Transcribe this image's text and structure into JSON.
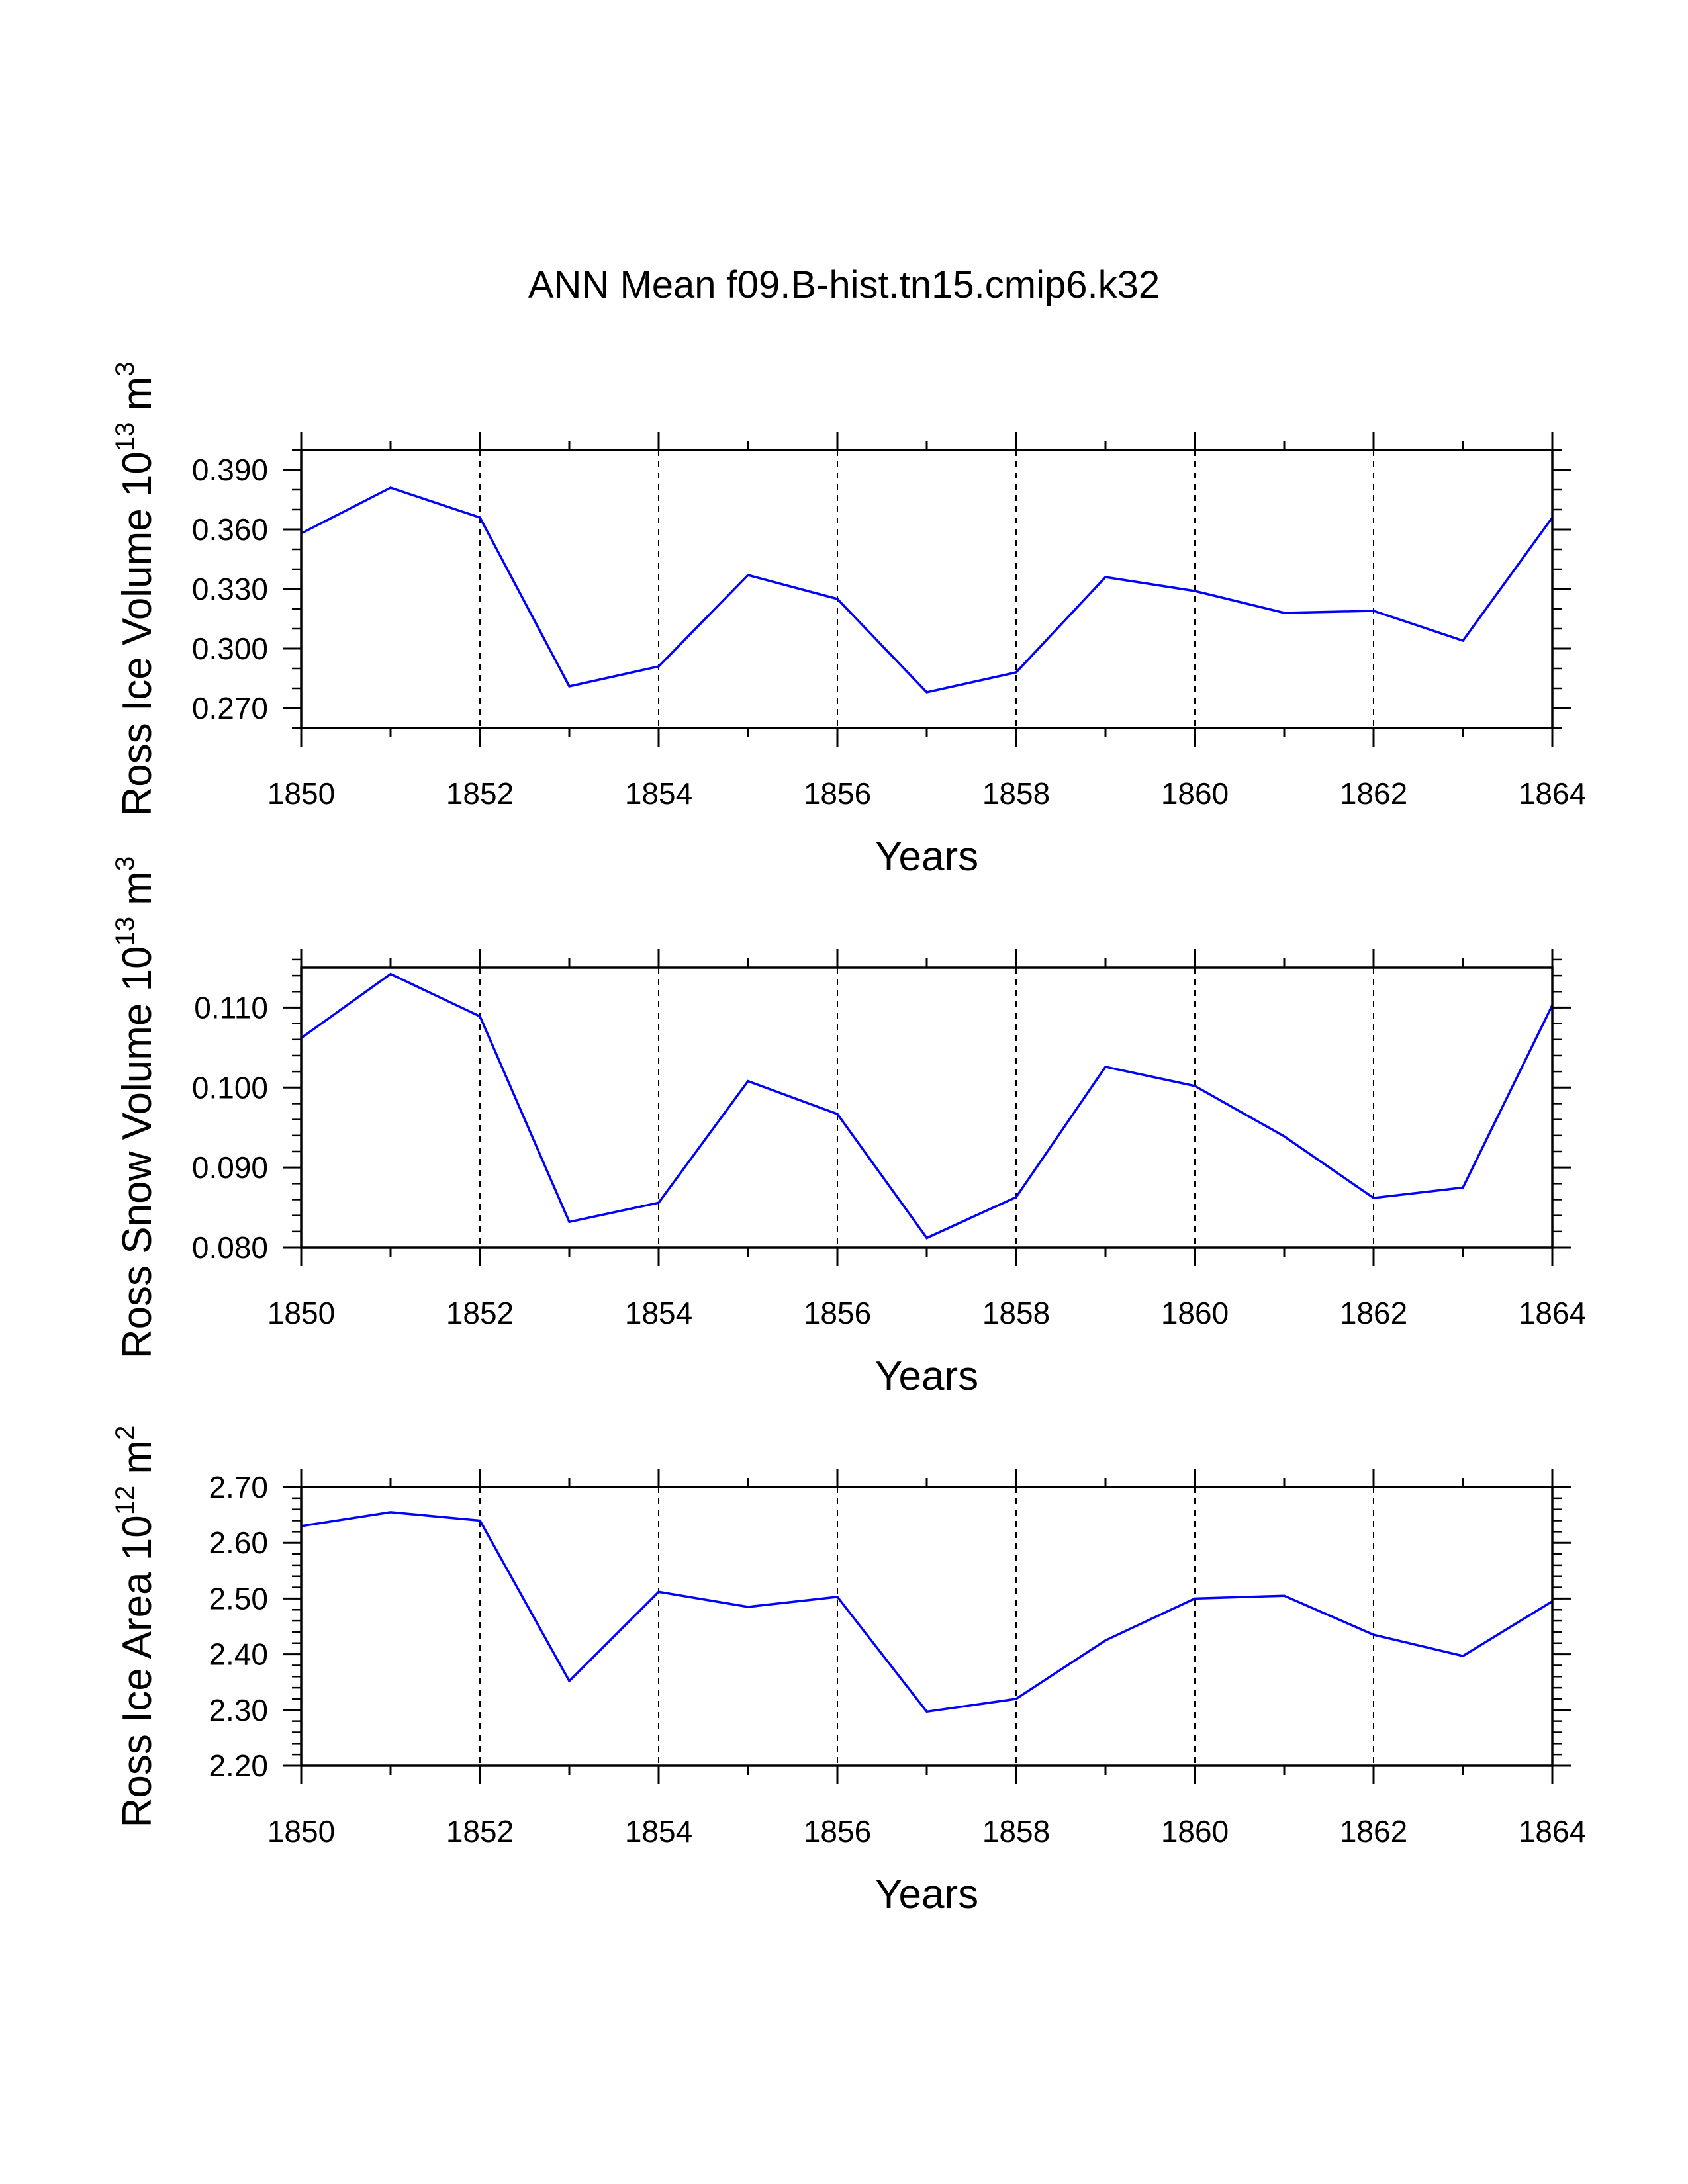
{
  "title": "ANN Mean f09.B-hist.tn15.cmip6.k32",
  "colors": {
    "line": "#0000ff",
    "axis": "#000000",
    "grid": "#000000"
  },
  "chart_data": [
    {
      "type": "line",
      "title": "ANN Mean f09.B-hist.tn15.cmip6.k32",
      "xlabel": "Years",
      "ylabel": {
        "text": "Ross Ice Volume 10",
        "exp": "13",
        "unit": " m",
        "unit_exp": "3"
      },
      "xlim": [
        1850,
        1864
      ],
      "ylim": [
        0.26,
        0.4
      ],
      "xticks": [
        "1850",
        "1852",
        "1854",
        "1856",
        "1858",
        "1860",
        "1862",
        "1864"
      ],
      "yticks": [
        0.27,
        0.3,
        0.33,
        0.36,
        0.39
      ],
      "ytick_labels": [
        "0.270",
        "0.300",
        "0.330",
        "0.360",
        "0.390"
      ],
      "yminor": 0.01,
      "grid": "dashed vertical at major x ticks",
      "series": [
        {
          "name": "Ross Ice Volume",
          "x": [
            1850,
            1851,
            1852,
            1853,
            1854,
            1855,
            1856,
            1857,
            1858,
            1859,
            1860,
            1861,
            1862,
            1863,
            1864
          ],
          "values": [
            0.358,
            0.381,
            0.366,
            0.281,
            0.291,
            0.337,
            0.325,
            0.278,
            0.288,
            0.336,
            0.329,
            0.318,
            0.319,
            0.304,
            0.366
          ]
        }
      ]
    },
    {
      "type": "line",
      "xlabel": "Years",
      "ylabel": {
        "text": "Ross Snow Volume 10",
        "exp": "13",
        "unit": " m",
        "unit_exp": "3"
      },
      "xlim": [
        1850,
        1864
      ],
      "ylim": [
        0.08,
        0.115
      ],
      "xticks": [
        "1850",
        "1852",
        "1854",
        "1856",
        "1858",
        "1860",
        "1862",
        "1864"
      ],
      "yticks": [
        0.08,
        0.09,
        0.1,
        0.11
      ],
      "ytick_labels": [
        "0.080",
        "0.090",
        "0.100",
        "0.110"
      ],
      "yminor": 0.002,
      "grid": "dashed vertical at major x ticks",
      "series": [
        {
          "name": "Ross Snow Volume",
          "x": [
            1850,
            1851,
            1852,
            1853,
            1854,
            1855,
            1856,
            1857,
            1858,
            1859,
            1860,
            1861,
            1862,
            1863,
            1864
          ],
          "values": [
            0.1062,
            0.1142,
            0.1089,
            0.0832,
            0.0856,
            0.1008,
            0.0967,
            0.0812,
            0.0863,
            0.1026,
            0.1002,
            0.0939,
            0.0862,
            0.0875,
            0.1103
          ]
        }
      ]
    },
    {
      "type": "line",
      "xlabel": "Years",
      "ylabel": {
        "text": "Ross Ice Area 10",
        "exp": "12",
        "unit": " m",
        "unit_exp": "2"
      },
      "xlim": [
        1850,
        1864
      ],
      "ylim": [
        2.2,
        2.7
      ],
      "xticks": [
        "1850",
        "1852",
        "1854",
        "1856",
        "1858",
        "1860",
        "1862",
        "1864"
      ],
      "yticks": [
        2.2,
        2.3,
        2.4,
        2.5,
        2.6,
        2.7
      ],
      "ytick_labels": [
        "2.20",
        "2.30",
        "2.40",
        "2.50",
        "2.60",
        "2.70"
      ],
      "yminor": 0.02,
      "grid": "dashed vertical at major x ticks",
      "series": [
        {
          "name": "Ross Ice Area",
          "x": [
            1850,
            1851,
            1852,
            1853,
            1854,
            1855,
            1856,
            1857,
            1858,
            1859,
            1860,
            1861,
            1862,
            1863,
            1864
          ],
          "values": [
            2.63,
            2.655,
            2.64,
            2.352,
            2.512,
            2.485,
            2.503,
            2.297,
            2.32,
            2.425,
            2.5,
            2.505,
            2.435,
            2.397,
            2.495
          ]
        }
      ]
    }
  ]
}
